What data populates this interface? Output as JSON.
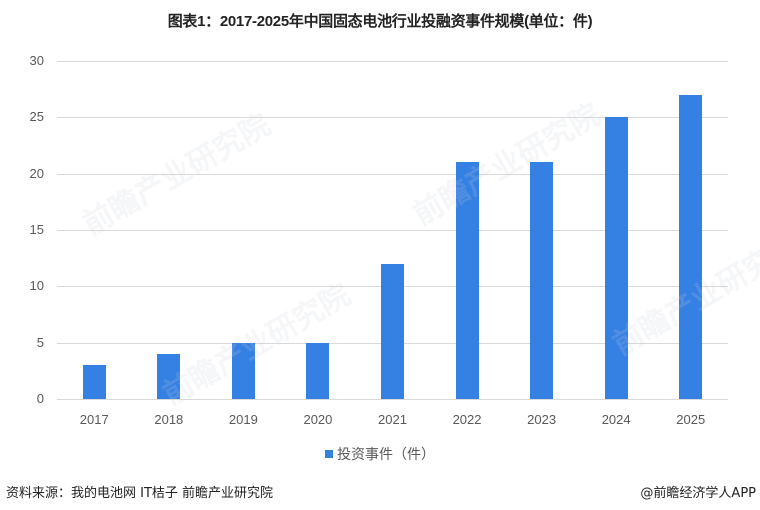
{
  "chart_data": {
    "type": "bar",
    "title": "图表1：2017-2025年中国固态电池行业投融资事件规模(单位：件)",
    "categories": [
      "2017",
      "2018",
      "2019",
      "2020",
      "2021",
      "2022",
      "2023",
      "2024",
      "2025"
    ],
    "series": [
      {
        "name": "投资事件（件）",
        "values": [
          3,
          4,
          5,
          5,
          12,
          21,
          21,
          25,
          27
        ],
        "color": "#3580e3"
      }
    ],
    "xlabel": "",
    "ylabel": "",
    "ylim": [
      0,
      30
    ],
    "yticks": [
      "0",
      "5",
      "10",
      "15",
      "20",
      "25",
      "30"
    ],
    "grid": true,
    "legend_position": "bottom"
  },
  "footer": {
    "source": "资料来源：我的电池网 IT桔子 前瞻产业研究院",
    "brand": "@前瞻经济学人APP"
  },
  "watermark": "前瞻产业研究院"
}
